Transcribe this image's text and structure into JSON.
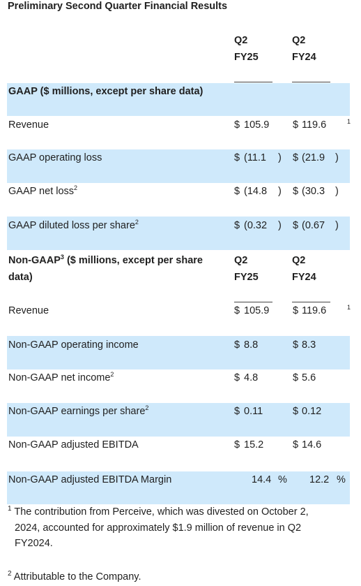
{
  "title": "Preliminary Second Quarter Financial Results",
  "col_header": {
    "c1_top": "Q2",
    "c1_bottom": "FY25",
    "c2_top": "Q2",
    "c2_bottom": "FY24"
  },
  "currency_symbol": "$",
  "gaap": {
    "header": "GAAP ($ millions, except per share data)",
    "rows": [
      {
        "label": "Revenue",
        "v1": "105.9",
        "v2": "119.6",
        "note": "1"
      },
      {
        "label": "GAAP operating loss",
        "v1": "(11.1",
        "v2": "(21.9"
      },
      {
        "label": "GAAP net loss",
        "sup": "2",
        "v1": "(14.8",
        "v2": "(30.3"
      },
      {
        "label": "GAAP diluted loss per share",
        "sup": "2",
        "v1": "(0.32",
        "v2": "(0.67"
      }
    ],
    "close_paren": ")"
  },
  "nongaap": {
    "header_a": "Non-GAAP",
    "header_sup": "3",
    "header_b": " ($ millions, except per share",
    "header_c": "data)",
    "rows": [
      {
        "label": "Revenue",
        "v1": "105.9",
        "v2": "119.6",
        "note": "1"
      },
      {
        "label": "Non-GAAP operating income",
        "v1": "8.8",
        "v2": "8.3"
      },
      {
        "label": "Non-GAAP net income",
        "sup": "2",
        "v1": "4.8",
        "v2": "5.6"
      },
      {
        "label": "Non-GAAP earnings per share",
        "sup": "2",
        "v1": "0.11",
        "v2": "0.12"
      },
      {
        "label": "Non-GAAP adjusted EBITDA",
        "v1": "15.2",
        "v2": "14.6"
      },
      {
        "label": "Non-GAAP adjusted EBITDA Margin",
        "v1": "14.4",
        "v2": "12.2",
        "unit": "%"
      }
    ]
  },
  "footnotes": {
    "f1_mark": "1",
    "f1_line1": "The contribution from Perceive, which was divested on October 2,",
    "f1_line2": "2024, accounted for approximately $1.9 million of revenue in Q2",
    "f1_line3": "FY2024.",
    "f2_mark": "2",
    "f2_text": "Attributable to the Company."
  },
  "colors": {
    "shade": "#cfe9fb",
    "text": "#1f1f1f"
  }
}
